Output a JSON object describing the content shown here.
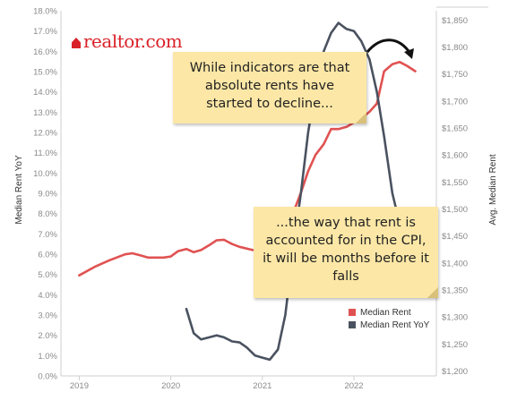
{
  "chart_data": {
    "type": "line",
    "logo": "realtor.com",
    "y_left": {
      "label": "Median Rent YoY",
      "ticks": [
        "18.0%",
        "17.0%",
        "16.0%",
        "15.0%",
        "14.0%",
        "13.0%",
        "12.0%",
        "11.0%",
        "10.0%",
        "9.0%",
        "8.0%",
        "7.0%",
        "6.0%",
        "5.0%",
        "4.0%",
        "3.0%",
        "2.0%",
        "1.0%",
        "0.0%"
      ],
      "range": [
        0,
        18
      ]
    },
    "y_right": {
      "label": "Avg. Median Rent",
      "ticks": [
        "$1,850",
        "$1,800",
        "$1,750",
        "$1,700",
        "$1,650",
        "$1,600",
        "$1,550",
        "$1,500",
        "$1,450",
        "$1,400",
        "$1,350",
        "$1,300",
        "$1,250",
        "$1,200"
      ],
      "range": [
        1191,
        1867
      ]
    },
    "x_axis": {
      "ticks": [
        "2019",
        "2020",
        "2021",
        "2022"
      ],
      "range": [
        2018.8,
        2022.9
      ]
    },
    "series": [
      {
        "name": "Median Rent",
        "axis": "right",
        "color": "#e05252",
        "points": [
          [
            2019.0,
            1377
          ],
          [
            2019.17,
            1393
          ],
          [
            2019.33,
            1405
          ],
          [
            2019.5,
            1416
          ],
          [
            2019.58,
            1418
          ],
          [
            2019.67,
            1414
          ],
          [
            2019.75,
            1410
          ],
          [
            2019.92,
            1410
          ],
          [
            2020.0,
            1412
          ],
          [
            2020.08,
            1422
          ],
          [
            2020.17,
            1426
          ],
          [
            2020.25,
            1420
          ],
          [
            2020.33,
            1424
          ],
          [
            2020.42,
            1433
          ],
          [
            2020.5,
            1442
          ],
          [
            2020.58,
            1443
          ],
          [
            2020.67,
            1435
          ],
          [
            2020.75,
            1430
          ],
          [
            2020.92,
            1423
          ],
          [
            2021.0,
            1422
          ],
          [
            2021.08,
            1430
          ],
          [
            2021.17,
            1440
          ],
          [
            2021.25,
            1455
          ],
          [
            2021.33,
            1490
          ],
          [
            2021.42,
            1530
          ],
          [
            2021.5,
            1570
          ],
          [
            2021.58,
            1600
          ],
          [
            2021.67,
            1620
          ],
          [
            2021.75,
            1648
          ],
          [
            2021.83,
            1648
          ],
          [
            2021.92,
            1652
          ],
          [
            2022.0,
            1660
          ],
          [
            2022.08,
            1668
          ],
          [
            2022.17,
            1680
          ],
          [
            2022.25,
            1695
          ],
          [
            2022.33,
            1755
          ],
          [
            2022.42,
            1768
          ],
          [
            2022.5,
            1772
          ],
          [
            2022.58,
            1765
          ],
          [
            2022.67,
            1755
          ]
        ]
      },
      {
        "name": "Median Rent YoY",
        "axis": "left",
        "color": "#4a5260",
        "points": [
          [
            2020.17,
            3.3
          ],
          [
            2020.25,
            2.1
          ],
          [
            2020.33,
            1.8
          ],
          [
            2020.42,
            1.9
          ],
          [
            2020.5,
            2.0
          ],
          [
            2020.58,
            1.9
          ],
          [
            2020.67,
            1.7
          ],
          [
            2020.75,
            1.65
          ],
          [
            2020.83,
            1.4
          ],
          [
            2020.92,
            1.0
          ],
          [
            2021.0,
            0.9
          ],
          [
            2021.08,
            0.8
          ],
          [
            2021.17,
            1.3
          ],
          [
            2021.25,
            3.0
          ],
          [
            2021.33,
            6.0
          ],
          [
            2021.42,
            9.0
          ],
          [
            2021.5,
            12.0
          ],
          [
            2021.58,
            14.2
          ],
          [
            2021.67,
            16.0
          ],
          [
            2021.75,
            16.9
          ],
          [
            2021.83,
            17.4
          ],
          [
            2021.92,
            17.1
          ],
          [
            2022.0,
            17.0
          ],
          [
            2022.08,
            16.5
          ],
          [
            2022.17,
            15.6
          ],
          [
            2022.25,
            14.0
          ],
          [
            2022.33,
            11.8
          ],
          [
            2022.42,
            9.0
          ],
          [
            2022.5,
            7.5
          ]
        ]
      }
    ],
    "legend": [
      "Median Rent",
      "Median Rent YoY"
    ],
    "legend_position": "bottom-right",
    "grid": false,
    "annotations": [
      "While indicators are that absolute rents have started to decline...",
      "...the way that rent is accounted for in the CPI, it will be months before it falls"
    ]
  }
}
